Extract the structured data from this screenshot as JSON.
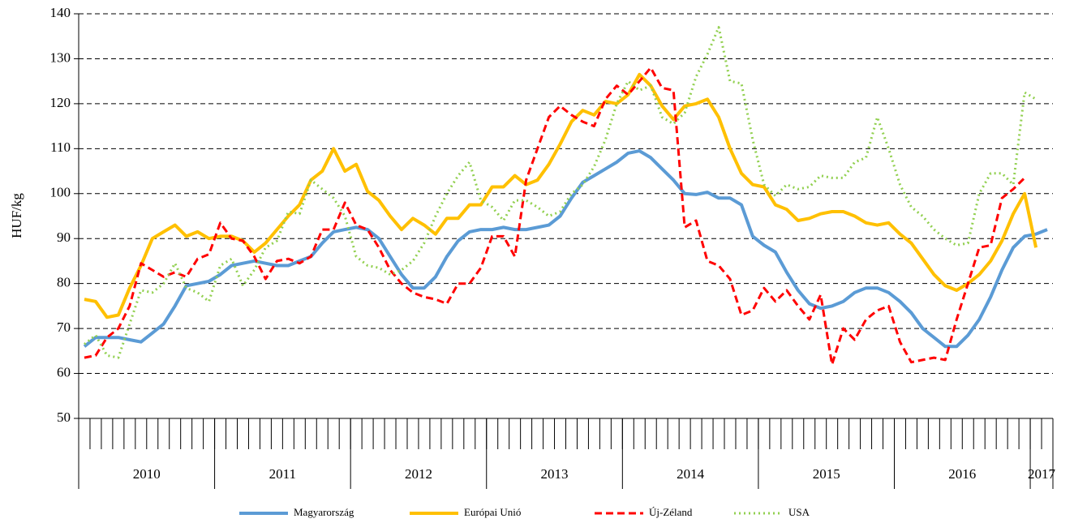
{
  "chart_data": {
    "type": "line",
    "y_label": "HUF/kg",
    "categories": [
      null,
      null,
      null,
      null,
      null,
      null,
      null,
      null,
      null,
      null,
      null,
      null,
      null,
      null,
      null,
      null,
      null,
      null,
      null,
      null,
      null,
      null,
      null,
      null,
      null,
      null,
      null,
      null,
      null,
      null,
      null,
      null,
      null,
      null,
      null,
      null,
      null,
      null,
      null,
      null,
      null,
      null,
      null,
      null,
      null,
      null,
      null,
      null,
      null,
      null,
      null,
      null,
      null,
      null,
      null,
      null,
      null,
      null,
      null,
      null,
      null,
      null,
      null,
      null,
      null,
      null,
      null,
      null,
      null,
      null,
      null,
      null,
      null,
      null,
      null,
      null,
      null,
      null,
      null,
      null,
      null,
      null,
      null,
      null,
      null,
      null
    ],
    "x_groups": [
      {
        "label": "2010",
        "months": 12
      },
      {
        "label": "2011",
        "months": 12
      },
      {
        "label": "2012",
        "months": 12
      },
      {
        "label": "2013",
        "months": 12
      },
      {
        "label": "2014",
        "months": 12
      },
      {
        "label": "2015",
        "months": 12
      },
      {
        "label": "2016",
        "months": 12
      },
      {
        "label": "2017",
        "months": 2
      }
    ],
    "ylim": [
      50,
      140
    ],
    "yticks": [
      50,
      60,
      70,
      80,
      90,
      100,
      110,
      120,
      130,
      140
    ],
    "grid": true,
    "series": [
      {
        "name": "Magyarország",
        "color": "#5b9bd5",
        "style": "solid",
        "values": [
          66,
          68,
          68,
          68,
          67.5,
          67,
          69,
          71,
          75,
          79.5,
          80,
          80.5,
          82,
          84,
          84.5,
          85,
          84.5,
          84,
          84,
          85,
          86,
          89,
          91.5,
          92,
          92.5,
          92,
          90,
          86,
          82,
          79,
          79,
          81.5,
          86,
          89.5,
          91.5,
          92,
          92,
          92.5,
          92,
          92,
          92.5,
          93,
          95,
          99,
          102.5,
          104,
          105.5,
          107,
          109,
          109.5,
          108,
          105.5,
          103,
          100,
          99.8,
          100.3,
          99,
          99,
          97.5,
          90.5,
          88.5,
          87,
          82.5,
          78.5,
          75.5,
          74.5,
          75,
          76,
          78,
          79,
          79,
          78,
          76,
          73.5,
          70,
          68,
          66,
          66,
          68.5,
          72,
          77,
          83,
          88,
          90.5,
          91,
          92
        ]
      },
      {
        "name": "Európai Unió",
        "color": "#ffc000",
        "style": "solid",
        "values": [
          76.5,
          76,
          72.5,
          73,
          79,
          84,
          90,
          91.5,
          93,
          90.5,
          91.5,
          90,
          90.5,
          90.5,
          89.5,
          87,
          89,
          92,
          95,
          97.5,
          103,
          105,
          110,
          105,
          106.5,
          100.5,
          98.5,
          95,
          92,
          94.5,
          93,
          91,
          94.5,
          94.5,
          97.5,
          97.5,
          101.5,
          101.5,
          104,
          102,
          103,
          106.5,
          111,
          116,
          118.5,
          117.5,
          120.5,
          120,
          122,
          126.5,
          124,
          119.5,
          116.5,
          119.5,
          120,
          121,
          117,
          110,
          104.5,
          102,
          101.5,
          97.5,
          96.5,
          94,
          94.5,
          95.5,
          96,
          96,
          95,
          93.5,
          93,
          93.5,
          91,
          89,
          85.5,
          82,
          79.5,
          78.5,
          80,
          82,
          85,
          89.5,
          95.5,
          100,
          88,
          null
        ]
      },
      {
        "name": "Új-Zéland",
        "color": "#ff0000",
        "style": "dashed",
        "values": [
          63.5,
          64,
          68,
          70,
          75,
          84.5,
          83,
          81.5,
          82.5,
          81.5,
          85.5,
          86.5,
          93.5,
          90,
          89.5,
          86,
          81,
          85,
          85.5,
          84.5,
          86,
          92,
          92,
          98,
          93,
          92,
          88,
          83,
          80,
          78,
          77,
          76.5,
          75.5,
          80,
          80,
          83.5,
          90.5,
          90.5,
          86,
          103,
          110,
          117,
          119.5,
          117.5,
          116,
          115,
          121,
          124,
          122,
          125,
          128,
          123.5,
          123,
          92.5,
          94,
          85,
          84,
          81,
          73,
          74,
          79,
          76,
          78.5,
          75,
          72,
          77.5,
          62,
          70,
          67.5,
          72,
          74,
          75,
          67,
          62.5,
          63,
          63.5,
          63,
          72,
          80,
          88,
          88.5,
          99,
          101,
          103.5,
          null,
          null
        ]
      },
      {
        "name": "USA",
        "color": "#92d050",
        "style": "dotted",
        "values": [
          66.5,
          68.5,
          64,
          63.5,
          71,
          78.5,
          78,
          80,
          84.5,
          79,
          78,
          76,
          84,
          85.5,
          79.5,
          83,
          88,
          89.5,
          96,
          95.5,
          103,
          101,
          99,
          95,
          86,
          84,
          83.5,
          82,
          83,
          85,
          89,
          95,
          100,
          104,
          107,
          98.5,
          97,
          94,
          98.5,
          98.5,
          97,
          95,
          96,
          100,
          102,
          106,
          112,
          120,
          125,
          123,
          124,
          117,
          115.5,
          118,
          126,
          131,
          137,
          125,
          124.5,
          112,
          102,
          99.5,
          102,
          101,
          101.5,
          104,
          103.5,
          103.5,
          107,
          108,
          117,
          110,
          102,
          97,
          95,
          92,
          90,
          88.5,
          89,
          100,
          104.5,
          104.5,
          102,
          122.5,
          121,
          null
        ]
      }
    ]
  }
}
